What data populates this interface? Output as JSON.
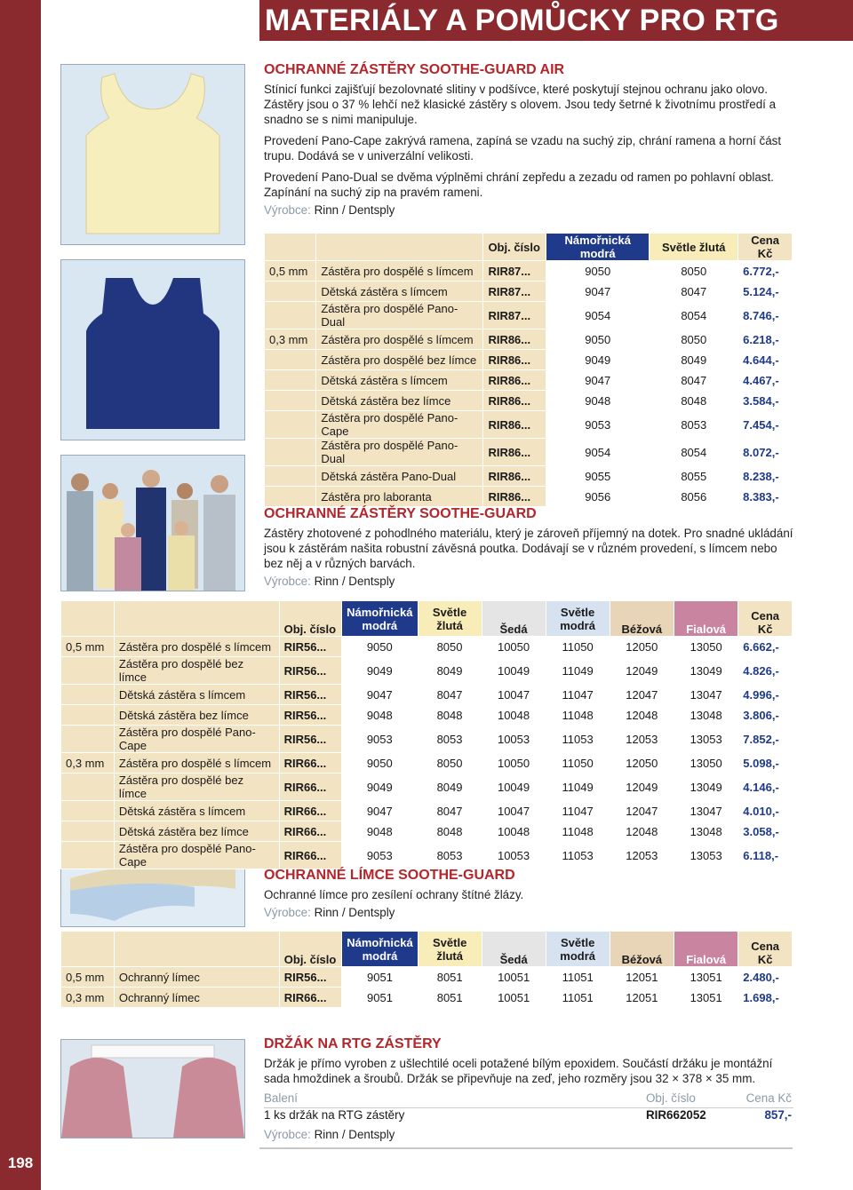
{
  "header": {
    "title": "MATERIÁLY A POMŮCKY PRO RTG",
    "page": "198"
  },
  "sec1": {
    "title": "OCHRANNÉ ZÁSTĚRY SOOTHE-GUARD AIR",
    "p1": "Stínicí funkci zajišťují bezolovnaté slitiny v podšívce, které poskytují stejnou ochranu jako olovo. Zástěry jsou o 37 % lehčí než klasické zástěry s olovem. Jsou tedy šetrné k životnímu prostředí a snadno se s nimi manipuluje.",
    "p2": "Provedení Pano-Cape zakrývá ramena, zapíná se vzadu na suchý zip, chrání ramena a horní část trupu. Dodává se v univerzální velikosti.",
    "p3": "Provedení Pano-Dual se dvěma výplněmi chrání zepředu a zezadu od ramen po pohlavní oblast. Zapínání na suchý zip na pravém rameni.",
    "vyrobce_label": "Výrobce:",
    "vyrobce": "Rinn / Dentsply",
    "headers": [
      "Obj. číslo",
      "Námořnická modrá",
      "Světle žlutá",
      "Cena Kč"
    ],
    "rows": [
      [
        "0,5 mm",
        "Zástěra pro dospělé s límcem",
        "RIR87...",
        "9050",
        "8050",
        "6.772,-"
      ],
      [
        "",
        "Dětská zástěra s límcem",
        "RIR87...",
        "9047",
        "8047",
        "5.124,-"
      ],
      [
        "",
        "Zástěra pro dospělé Pano-Dual",
        "RIR87...",
        "9054",
        "8054",
        "8.746,-"
      ],
      [
        "0,3 mm",
        "Zástěra pro dospělé s límcem",
        "RIR86...",
        "9050",
        "8050",
        "6.218,-"
      ],
      [
        "",
        "Zástěra pro dospělé bez límce",
        "RIR86...",
        "9049",
        "8049",
        "4.644,-"
      ],
      [
        "",
        "Dětská zástěra s límcem",
        "RIR86...",
        "9047",
        "8047",
        "4.467,-"
      ],
      [
        "",
        "Dětská zástěra bez límce",
        "RIR86...",
        "9048",
        "8048",
        "3.584,-"
      ],
      [
        "",
        "Zástěra pro dospělé Pano-Cape",
        "RIR86...",
        "9053",
        "8053",
        "7.454,-"
      ],
      [
        "",
        "Zástěra pro dospělé Pano-Dual",
        "RIR86...",
        "9054",
        "8054",
        "8.072,-"
      ],
      [
        "",
        "Dětská zástěra Pano-Dual",
        "RIR86...",
        "9055",
        "8055",
        "8.238,-"
      ],
      [
        "",
        "Zástěra pro laboranta",
        "RIR86...",
        "9056",
        "8056",
        "8.383,-"
      ]
    ]
  },
  "sec2": {
    "title": "OCHRANNÉ ZÁSTĚRY SOOTHE-GUARD",
    "p1": "Zástěry zhotovené z pohodlného materiálu, který je zároveň příjemný na dotek. Pro snadné ukládání jsou k zástěrám našita robustní závěsná poutka. Dodávají se v různém provedení, s límcem nebo bez něj a v různých barvách.",
    "vyrobce_label": "Výrobce:",
    "vyrobce": "Rinn / Dentsply",
    "headers": [
      "Obj. číslo",
      "Námořnická modrá",
      "Světle žlutá",
      "Šedá",
      "Světle modrá",
      "Béžová",
      "Fialová",
      "Cena Kč"
    ],
    "rows": [
      [
        "0,5 mm",
        "Zástěra pro dospělé s límcem",
        "RIR56...",
        "9050",
        "8050",
        "10050",
        "11050",
        "12050",
        "13050",
        "6.662,-"
      ],
      [
        "",
        "Zástěra pro dospělé bez límce",
        "RIR56...",
        "9049",
        "8049",
        "10049",
        "11049",
        "12049",
        "13049",
        "4.826,-"
      ],
      [
        "",
        "Dětská zástěra s límcem",
        "RIR56...",
        "9047",
        "8047",
        "10047",
        "11047",
        "12047",
        "13047",
        "4.996,-"
      ],
      [
        "",
        "Dětská zástěra bez límce",
        "RIR56...",
        "9048",
        "8048",
        "10048",
        "11048",
        "12048",
        "13048",
        "3.806,-"
      ],
      [
        "",
        "Zástěra pro dospělé Pano-Cape",
        "RIR56...",
        "9053",
        "8053",
        "10053",
        "11053",
        "12053",
        "13053",
        "7.852,-"
      ],
      [
        "0,3 mm",
        "Zástěra pro dospělé s límcem",
        "RIR66...",
        "9050",
        "8050",
        "10050",
        "11050",
        "12050",
        "13050",
        "5.098,-"
      ],
      [
        "",
        "Zástěra pro dospělé bez límce",
        "RIR66...",
        "9049",
        "8049",
        "10049",
        "11049",
        "12049",
        "13049",
        "4.146,-"
      ],
      [
        "",
        "Dětská zástěra s límcem",
        "RIR66...",
        "9047",
        "8047",
        "10047",
        "11047",
        "12047",
        "13047",
        "4.010,-"
      ],
      [
        "",
        "Dětská zástěra bez límce",
        "RIR66...",
        "9048",
        "8048",
        "10048",
        "11048",
        "12048",
        "13048",
        "3.058,-"
      ],
      [
        "",
        "Zástěra pro dospělé Pano-Cape",
        "RIR66...",
        "9053",
        "8053",
        "10053",
        "11053",
        "12053",
        "13053",
        "6.118,-"
      ]
    ]
  },
  "sec3": {
    "title": "OCHRANNÉ LÍMCE SOOTHE-GUARD",
    "p1": "Ochranné límce pro zesílení ochrany štítné žlázy.",
    "vyrobce_label": "Výrobce:",
    "vyrobce": "Rinn / Dentsply",
    "headers": [
      "Obj. číslo",
      "Námořnická modrá",
      "Světle žlutá",
      "Šedá",
      "Světle modrá",
      "Béžová",
      "Fialová",
      "Cena Kč"
    ],
    "rows": [
      [
        "0,5 mm",
        "Ochranný límec",
        "RIR56...",
        "9051",
        "8051",
        "10051",
        "11051",
        "12051",
        "13051",
        "2.480,-"
      ],
      [
        "0,3 mm",
        "Ochranný límec",
        "RIR66...",
        "9051",
        "8051",
        "10051",
        "11051",
        "12051",
        "13051",
        "1.698,-"
      ]
    ]
  },
  "sec4": {
    "title": "DRŽÁK NA RTG ZÁSTĚRY",
    "p1": "Držák je přímo vyroben z ušlechtilé oceli potažené bílým epoxidem. Součástí držáku je montážní sada hmoždinek a šroubů. Držák se připevňuje na zeď, jeho rozměry jsou 32 × 378 × 35 mm.",
    "col_baleni": "Balení",
    "col_obj": "Obj. číslo",
    "col_cena": "Cena Kč",
    "item": "1 ks držák na RTG zástěry",
    "code": "RIR662052",
    "price": "857,-",
    "vyrobce_label": "Výrobce:",
    "vyrobce": "Rinn / Dentsply"
  },
  "colors": {
    "accent": "#8a2a2e",
    "heading": "#b3262b",
    "price": "#1f3a8a",
    "navy": "#1f3a8a",
    "tan": "#f2e3c3"
  }
}
